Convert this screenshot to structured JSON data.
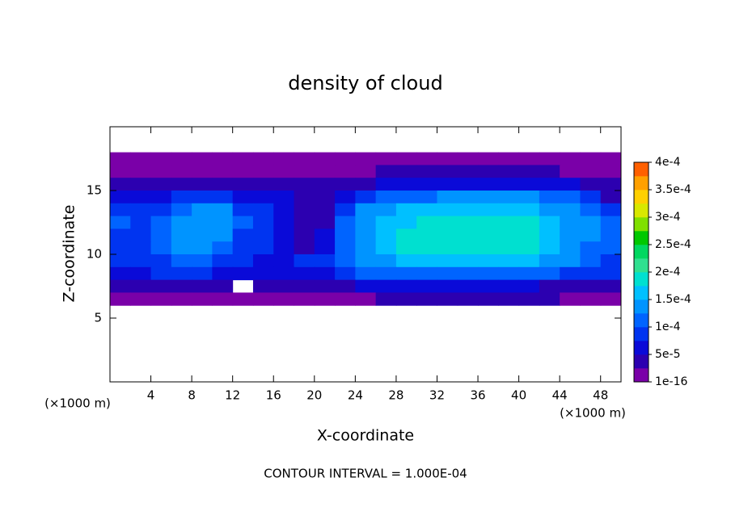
{
  "chart_data": {
    "type": "contour",
    "title": "density of cloud",
    "x_label": "X-coordinate",
    "y_label": "Z-coordinate",
    "x_unit": "(×1000 m)",
    "y_unit": "(×1000 m)",
    "footer": "CONTOUR INTERVAL = 1.000E-04",
    "xlim": [
      0,
      50
    ],
    "ylim": [
      0,
      20
    ],
    "xticks": [
      4,
      8,
      12,
      16,
      20,
      24,
      28,
      32,
      36,
      40,
      44,
      48
    ],
    "yticks": [
      5,
      10,
      15
    ],
    "x": [
      1,
      3,
      5,
      7,
      9,
      11,
      13,
      15,
      17,
      19,
      21,
      23,
      25,
      27,
      29,
      31,
      33,
      35,
      37,
      39,
      41,
      43,
      45,
      47,
      49
    ],
    "z": [
      17.5,
      16.5,
      15.5,
      14.5,
      13.5,
      12.5,
      11.5,
      10.5,
      9.5,
      8.5,
      7.5,
      6.5
    ],
    "values": [
      [
        1e-05,
        1e-05,
        1e-05,
        1e-05,
        1e-05,
        1e-05,
        1e-05,
        1e-05,
        1e-05,
        1e-05,
        1e-05,
        1e-05,
        1e-05,
        1e-05,
        1e-05,
        1e-05,
        1e-05,
        1e-05,
        1e-05,
        1e-05,
        1e-05,
        1e-05,
        1e-05,
        1e-05,
        1e-05
      ],
      [
        1e-05,
        1e-05,
        1e-05,
        1e-05,
        1e-05,
        1e-05,
        1e-05,
        1e-05,
        2e-05,
        2e-05,
        1e-05,
        1e-05,
        2e-05,
        3e-05,
        3e-05,
        3e-05,
        3e-05,
        3e-05,
        3e-05,
        3e-05,
        3e-05,
        3e-05,
        2e-05,
        2e-05,
        1e-05
      ],
      [
        3e-05,
        4e-05,
        4e-05,
        5e-05,
        4e-05,
        4e-05,
        4e-05,
        5e-05,
        5e-05,
        4e-05,
        3e-05,
        3e-05,
        5e-05,
        6e-05,
        7e-05,
        7e-05,
        7e-05,
        7e-05,
        7e-05,
        7e-05,
        7e-05,
        7e-05,
        6e-05,
        5e-05,
        3e-05
      ],
      [
        6e-05,
        6e-05,
        7e-05,
        8e-05,
        8e-05,
        8e-05,
        7e-05,
        7e-05,
        6e-05,
        4e-05,
        3e-05,
        6e-05,
        9e-05,
        0.00011,
        0.00012,
        0.00012,
        0.00013,
        0.00013,
        0.00013,
        0.00013,
        0.00013,
        0.00012,
        0.00011,
        8e-05,
        5e-05
      ],
      [
        9e-05,
        8e-05,
        9e-05,
        0.00012,
        0.00013,
        0.00013,
        0.0001,
        8e-05,
        6e-05,
        4e-05,
        4e-05,
        9e-05,
        0.00013,
        0.00015,
        0.00016,
        0.00016,
        0.00017,
        0.00017,
        0.00017,
        0.00017,
        0.00016,
        0.00015,
        0.00014,
        0.00011,
        9e-05
      ],
      [
        0.00011,
        0.0001,
        0.00011,
        0.00014,
        0.00015,
        0.00014,
        0.00011,
        8e-05,
        7e-05,
        5e-05,
        5e-05,
        0.00011,
        0.00014,
        0.00016,
        0.00017,
        0.00019,
        0.00019,
        0.00019,
        0.00019,
        0.00019,
        0.00018,
        0.00017,
        0.00015,
        0.00013,
        0.00011
      ],
      [
        0.0001,
        9e-05,
        0.00011,
        0.00014,
        0.00014,
        0.00013,
        0.0001,
        8e-05,
        7e-05,
        5e-05,
        6e-05,
        0.00012,
        0.00015,
        0.00017,
        0.00018,
        0.00019,
        0.0002,
        0.0002,
        0.0002,
        0.00019,
        0.00018,
        0.00017,
        0.00015,
        0.00013,
        0.00012
      ],
      [
        9e-05,
        0.0001,
        0.00012,
        0.00013,
        0.00014,
        0.00011,
        9e-05,
        8e-05,
        6e-05,
        5e-05,
        7e-05,
        0.00012,
        0.00015,
        0.00017,
        0.00018,
        0.00019,
        0.00019,
        0.00019,
        0.00019,
        0.00019,
        0.00018,
        0.00016,
        0.00015,
        0.00012,
        0.00011
      ],
      [
        8e-05,
        9e-05,
        0.0001,
        0.00011,
        0.00012,
        0.0001,
        8e-05,
        7e-05,
        7e-05,
        8e-05,
        0.0001,
        0.00012,
        0.00014,
        0.00015,
        0.00016,
        0.00016,
        0.00017,
        0.00017,
        0.00017,
        0.00016,
        0.00016,
        0.00015,
        0.00013,
        0.00011,
        0.0001
      ],
      [
        6e-05,
        7e-05,
        8e-05,
        8e-05,
        9e-05,
        7e-05,
        7e-05,
        6e-05,
        6e-05,
        6e-05,
        7e-05,
        9e-05,
        0.00011,
        0.00012,
        0.00012,
        0.00012,
        0.00012,
        0.00012,
        0.00012,
        0.00012,
        0.00012,
        0.00011,
        0.0001,
        9e-05,
        8e-05
      ],
      [
        4e-05,
        4e-05,
        3e-05,
        5e-05,
        5e-05,
        3e-05,
        null,
        3e-05,
        4e-05,
        3e-05,
        4e-05,
        5e-05,
        6e-05,
        6e-05,
        6e-05,
        6e-05,
        6e-05,
        6e-05,
        6e-05,
        6e-05,
        6e-05,
        5e-05,
        5e-05,
        4e-05,
        4e-05
      ],
      [
        2e-05,
        2e-05,
        1e-05,
        2e-05,
        2e-05,
        2e-05,
        1e-05,
        2e-05,
        1e-05,
        1e-05,
        1e-05,
        2e-05,
        2e-05,
        3e-05,
        3e-05,
        3e-05,
        3e-05,
        3e-05,
        3e-05,
        3e-05,
        3e-05,
        3e-05,
        2e-05,
        2e-05,
        2e-05
      ]
    ],
    "zlim": [
      1e-16,
      0.0004
    ],
    "colors": [
      "#7a00a8",
      "#2c00b0",
      "#0a0ad8",
      "#0034f0",
      "#0064ff",
      "#0094ff",
      "#00c0ff",
      "#00e0d0",
      "#30e090",
      "#00d860",
      "#00c800",
      "#80e000",
      "#d8e800",
      "#ffd000",
      "#ffa000",
      "#ff6000"
    ],
    "colorbar_ticks": [
      {
        "value": 1e-16,
        "label": "1e-16"
      },
      {
        "value": 5e-05,
        "label": "5e-5"
      },
      {
        "value": 0.0001,
        "label": "1e-4"
      },
      {
        "value": 0.00015,
        "label": "1.5e-4"
      },
      {
        "value": 0.0002,
        "label": "2e-4"
      },
      {
        "value": 0.00025,
        "label": "2.5e-4"
      },
      {
        "value": 0.0003,
        "label": "3e-4"
      },
      {
        "value": 0.00035,
        "label": "3.5e-4"
      },
      {
        "value": 0.0004,
        "label": "4e-4"
      }
    ]
  }
}
